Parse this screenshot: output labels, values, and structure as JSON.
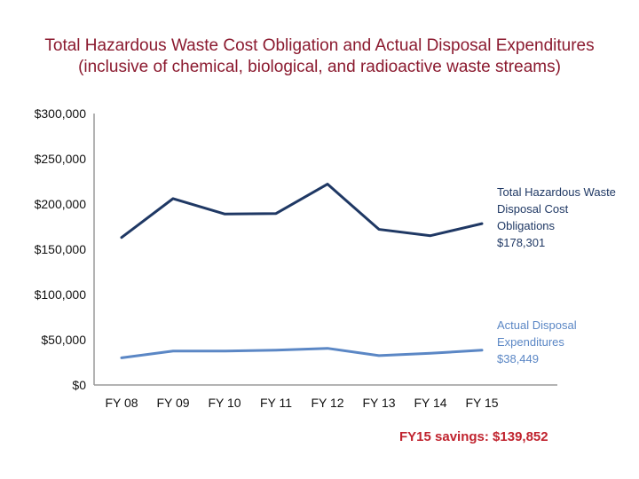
{
  "chart_data": {
    "type": "line",
    "title": "Total Hazardous Waste Cost Obligation and Actual Disposal Expenditures",
    "subtitle": "(inclusive of chemical, biological, and radioactive waste streams)",
    "categories": [
      "FY 08",
      "FY 09",
      "FY 10",
      "FY 11",
      "FY 12",
      "FY 13",
      "FY 14",
      "FY 15"
    ],
    "y_ticks": [
      "$0",
      "$50,000",
      "$100,000",
      "$150,000",
      "$200,000",
      "$250,000",
      "$300,000"
    ],
    "ylim": [
      0,
      300000
    ],
    "series": [
      {
        "name": "Total Hazardous Waste Disposal Cost Obligations",
        "label_lines": [
          "Total Hazardous Waste",
          "Disposal Cost",
          "Obligations",
          "$178,301"
        ],
        "color": "#1f3864",
        "values": [
          163000,
          206000,
          189000,
          189500,
          222000,
          172000,
          165000,
          178301
        ]
      },
      {
        "name": "Actual Disposal Expenditures",
        "label_lines": [
          "Actual Disposal",
          "Expenditures",
          "$38,449"
        ],
        "color": "#5b87c5",
        "values": [
          30000,
          37500,
          37500,
          38500,
          40500,
          32500,
          35000,
          38449
        ]
      }
    ],
    "annotation": "FY15 savings: $139,852"
  }
}
